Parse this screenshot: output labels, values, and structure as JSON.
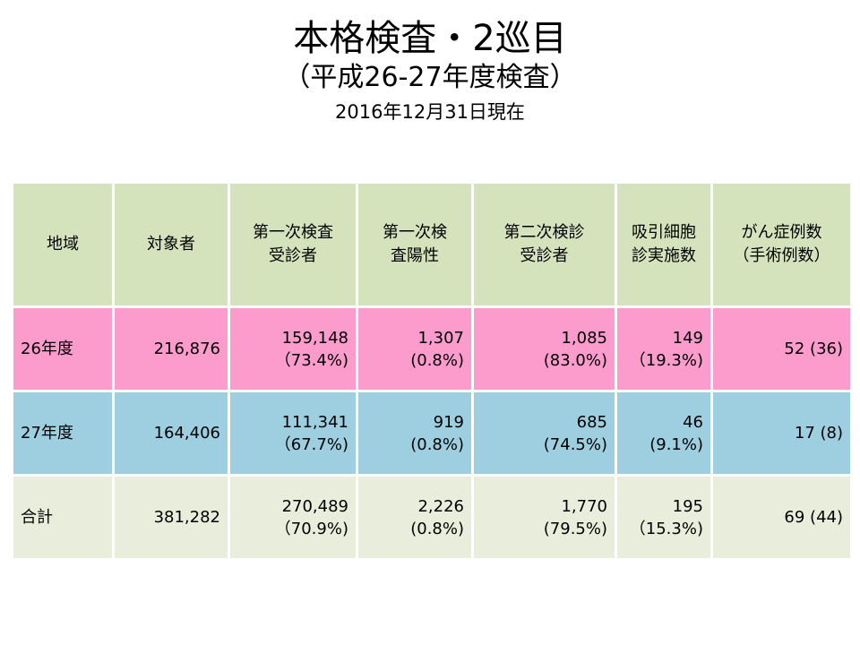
{
  "title": "本格検査・2巡目",
  "subtitle": "（平成26-27年度検査）",
  "as_of": "2016年12月31日現在",
  "table": {
    "headers": [
      [
        "地域"
      ],
      [
        "対象者"
      ],
      [
        "第一次検査",
        "受診者"
      ],
      [
        "第一次検",
        "査陽性"
      ],
      [
        "第二次検診",
        "受診者"
      ],
      [
        "吸引細胞",
        "診実施数"
      ],
      [
        "がん症例数",
        "（手術例数）"
      ]
    ],
    "rows": [
      {
        "region": "26年度",
        "target": "216,876",
        "first_exam": [
          "159,148",
          "（73.4%)"
        ],
        "first_positive": [
          "1,307",
          "(0.8%)"
        ],
        "second_exam": [
          "1,085",
          "(83.0%)"
        ],
        "aspiration": [
          "149",
          "（19.3%)"
        ],
        "cancer": "52 (36)"
      },
      {
        "region": "27年度",
        "target": "164,406",
        "first_exam": [
          "111,341",
          "（67.7%)"
        ],
        "first_positive": [
          "919",
          "(0.8%)"
        ],
        "second_exam": [
          "685",
          "(74.5%)"
        ],
        "aspiration": [
          "46",
          "(9.1%)"
        ],
        "cancer": "17 (8)"
      },
      {
        "region": "合計",
        "target": "381,282",
        "first_exam": [
          "270,489",
          "（70.9%)"
        ],
        "first_positive": [
          "2,226",
          "(0.8%)"
        ],
        "second_exam": [
          "1,770",
          "(79.5%)"
        ],
        "aspiration": [
          "195",
          "（15.3%)"
        ],
        "cancer": "69 (44)"
      }
    ]
  }
}
